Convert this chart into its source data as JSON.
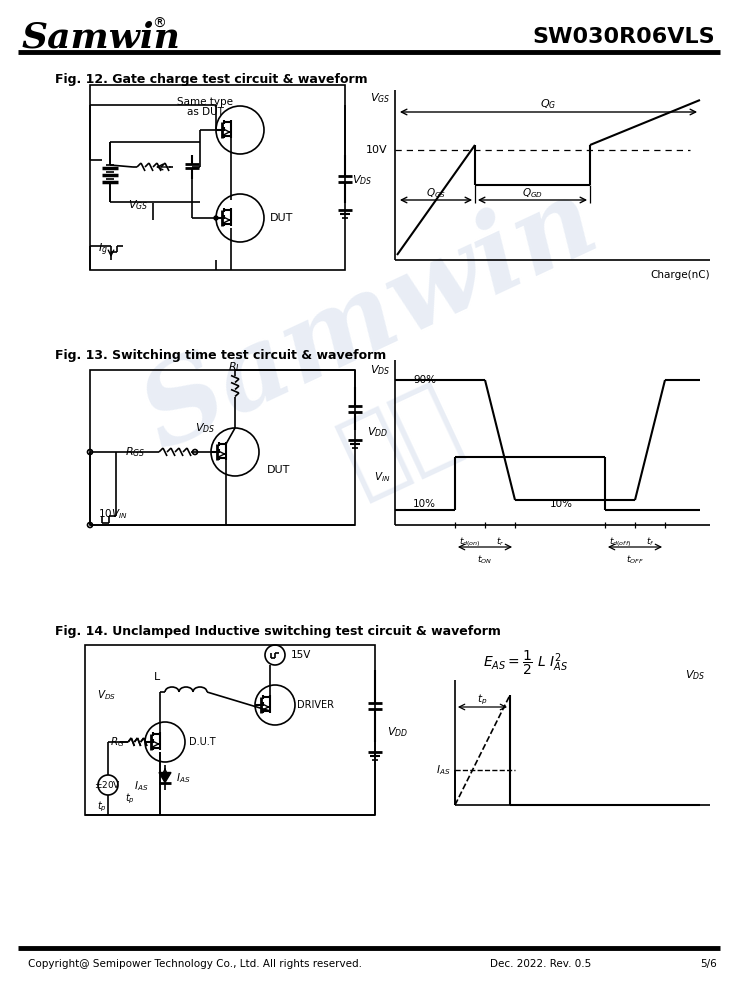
{
  "title_logo": "Samwin",
  "title_reg": "®",
  "title_part": "SW030R06VLS",
  "fig12_title": "Fig. 12. Gate charge test circuit & waveform",
  "fig13_title": "Fig. 13. Switching time test circuit & waveform",
  "fig14_title": "Fig. 14. Unclamped Inductive switching test circuit & waveform",
  "footer_left": "Copyright@ Semipower Technology Co., Ltd. All rights reserved.",
  "footer_mid": "Dec. 2022. Rev. 0.5",
  "footer_right": "5/6",
  "bg_color": "#ffffff",
  "line_color": "#000000",
  "wm_color": "#c8d4e8"
}
